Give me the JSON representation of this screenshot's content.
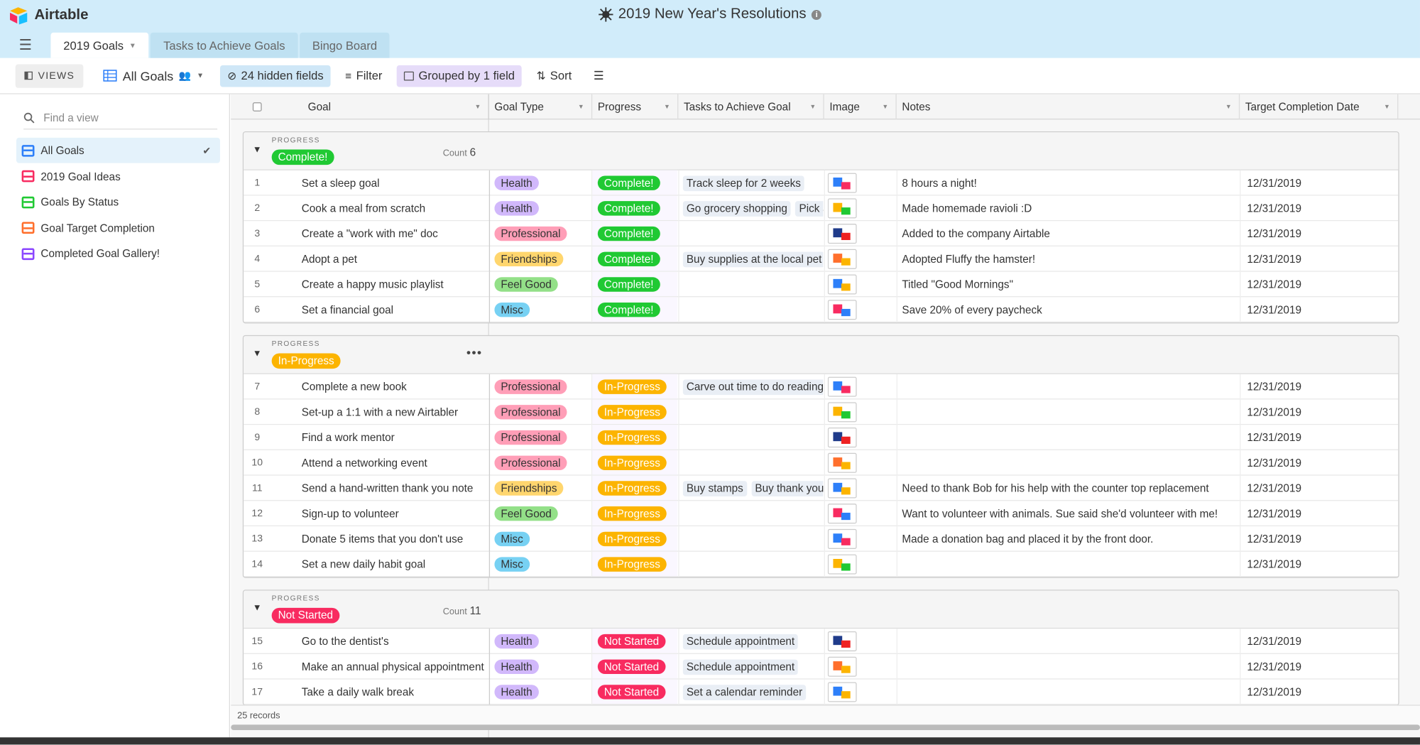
{
  "app": {
    "name": "Airtable",
    "base_title": "2019 New Year's Resolutions"
  },
  "tabs": [
    {
      "label": "2019 Goals"
    },
    {
      "label": "Tasks to Achieve Goals"
    },
    {
      "label": "Bingo Board"
    }
  ],
  "toolbar": {
    "views_label": "VIEWS",
    "current_view": "All Goals",
    "hidden_fields": "24 hidden fields",
    "filter": "Filter",
    "grouped": "Grouped by 1 field",
    "sort": "Sort"
  },
  "sidebar": {
    "find_placeholder": "Find a view",
    "views": [
      {
        "label": "All Goals",
        "color": "#2d7ff9"
      },
      {
        "label": "2019 Goal Ideas",
        "color": "#f82b60"
      },
      {
        "label": "Goals By Status",
        "color": "#20c933"
      },
      {
        "label": "Goal Target Completion",
        "color": "#ff6f2c"
      },
      {
        "label": "Completed Goal Gallery!",
        "color": "#8b46ff"
      }
    ]
  },
  "columns": [
    "Goal",
    "Goal Type",
    "Progress",
    "Tasks to Achieve Goal",
    "Image",
    "Notes",
    "Target Completion Date"
  ],
  "groups": [
    {
      "label": "PROGRESS",
      "value": "Complete!",
      "color": "#20c933",
      "count_label": "Count",
      "count": "6",
      "rows": [
        {
          "num": "1",
          "goal": "Set a sleep goal",
          "type": "Health",
          "progress": "Complete!",
          "tasks": [
            "Track sleep for 2 weeks"
          ],
          "notes": "8 hours a night!",
          "date": "12/31/2019"
        },
        {
          "num": "2",
          "goal": "Cook a meal from scratch",
          "type": "Health",
          "progress": "Complete!",
          "tasks": [
            "Go grocery shopping",
            "Pick a"
          ],
          "notes": "Made homemade ravioli :D",
          "date": "12/31/2019"
        },
        {
          "num": "3",
          "goal": "Create a \"work with me\" doc",
          "type": "Professional",
          "progress": "Complete!",
          "tasks": [],
          "notes": "Added to the company Airtable",
          "date": "12/31/2019"
        },
        {
          "num": "4",
          "goal": "Adopt a pet",
          "type": "Friendships",
          "progress": "Complete!",
          "tasks": [
            "Buy supplies at the local pet"
          ],
          "notes": "Adopted Fluffy the hamster!",
          "date": "12/31/2019"
        },
        {
          "num": "5",
          "goal": "Create a happy music playlist",
          "type": "Feel Good",
          "progress": "Complete!",
          "tasks": [],
          "notes": "Titled \"Good Mornings\"",
          "date": "12/31/2019"
        },
        {
          "num": "6",
          "goal": "Set a financial goal",
          "type": "Misc",
          "progress": "Complete!",
          "tasks": [],
          "notes": "Save 20% of every paycheck",
          "date": "12/31/2019"
        }
      ]
    },
    {
      "label": "PROGRESS",
      "value": "In-Progress",
      "color": "#fcb400",
      "count_label": "",
      "count": "",
      "rows": [
        {
          "num": "7",
          "goal": "Complete a new book",
          "type": "Professional",
          "progress": "In-Progress",
          "tasks": [
            "Carve out time to do reading"
          ],
          "notes": "",
          "date": "12/31/2019"
        },
        {
          "num": "8",
          "goal": "Set-up a 1:1 with a new Airtabler",
          "type": "Professional",
          "progress": "In-Progress",
          "tasks": [],
          "notes": "",
          "date": "12/31/2019"
        },
        {
          "num": "9",
          "goal": "Find a work mentor",
          "type": "Professional",
          "progress": "In-Progress",
          "tasks": [],
          "notes": "",
          "date": "12/31/2019"
        },
        {
          "num": "10",
          "goal": "Attend a networking event",
          "type": "Professional",
          "progress": "In-Progress",
          "tasks": [],
          "notes": "",
          "date": "12/31/2019"
        },
        {
          "num": "11",
          "goal": "Send a hand-written thank you note",
          "type": "Friendships",
          "progress": "In-Progress",
          "tasks": [
            "Buy stamps",
            "Buy thank you r"
          ],
          "notes": "Need to thank Bob for his help with the counter top replacement",
          "date": "12/31/2019"
        },
        {
          "num": "12",
          "goal": "Sign-up to volunteer",
          "type": "Feel Good",
          "progress": "In-Progress",
          "tasks": [],
          "notes": "Want to volunteer with animals. Sue said she'd volunteer with me!",
          "date": "12/31/2019"
        },
        {
          "num": "13",
          "goal": "Donate 5 items that you don't use",
          "type": "Misc",
          "progress": "In-Progress",
          "tasks": [],
          "notes": "Made a donation bag and placed it by the front door.",
          "date": "12/31/2019"
        },
        {
          "num": "14",
          "goal": "Set a new daily habit goal",
          "type": "Misc",
          "progress": "In-Progress",
          "tasks": [],
          "notes": "",
          "date": "12/31/2019"
        }
      ]
    },
    {
      "label": "PROGRESS",
      "value": "Not Started",
      "color": "#f82b60",
      "count_label": "Count",
      "count": "11",
      "rows": [
        {
          "num": "15",
          "goal": "Go to the dentist's",
          "type": "Health",
          "progress": "Not Started",
          "tasks": [
            "Schedule appointment"
          ],
          "notes": "",
          "date": "12/31/2019"
        },
        {
          "num": "16",
          "goal": "Make an annual physical appointment",
          "type": "Health",
          "progress": "Not Started",
          "tasks": [
            "Schedule appointment"
          ],
          "notes": "",
          "date": "12/31/2019"
        },
        {
          "num": "17",
          "goal": "Take a daily walk break",
          "type": "Health",
          "progress": "Not Started",
          "tasks": [
            "Set a calendar reminder"
          ],
          "notes": "",
          "date": "12/31/2019"
        }
      ]
    }
  ],
  "type_colors": {
    "Health": {
      "bg": "#d1b8fb",
      "fg": "#333333"
    },
    "Professional": {
      "bg": "#ff9eb7",
      "fg": "#333333"
    },
    "Friendships": {
      "bg": "#ffd66e",
      "fg": "#333333"
    },
    "Feel Good": {
      "bg": "#93e088",
      "fg": "#333333"
    },
    "Misc": {
      "bg": "#77d1f3",
      "fg": "#333333"
    }
  },
  "progress_colors": {
    "Complete!": "#20c933",
    "In-Progress": "#fcb400",
    "Not Started": "#f82b60"
  },
  "footer": {
    "records": "25 records"
  }
}
